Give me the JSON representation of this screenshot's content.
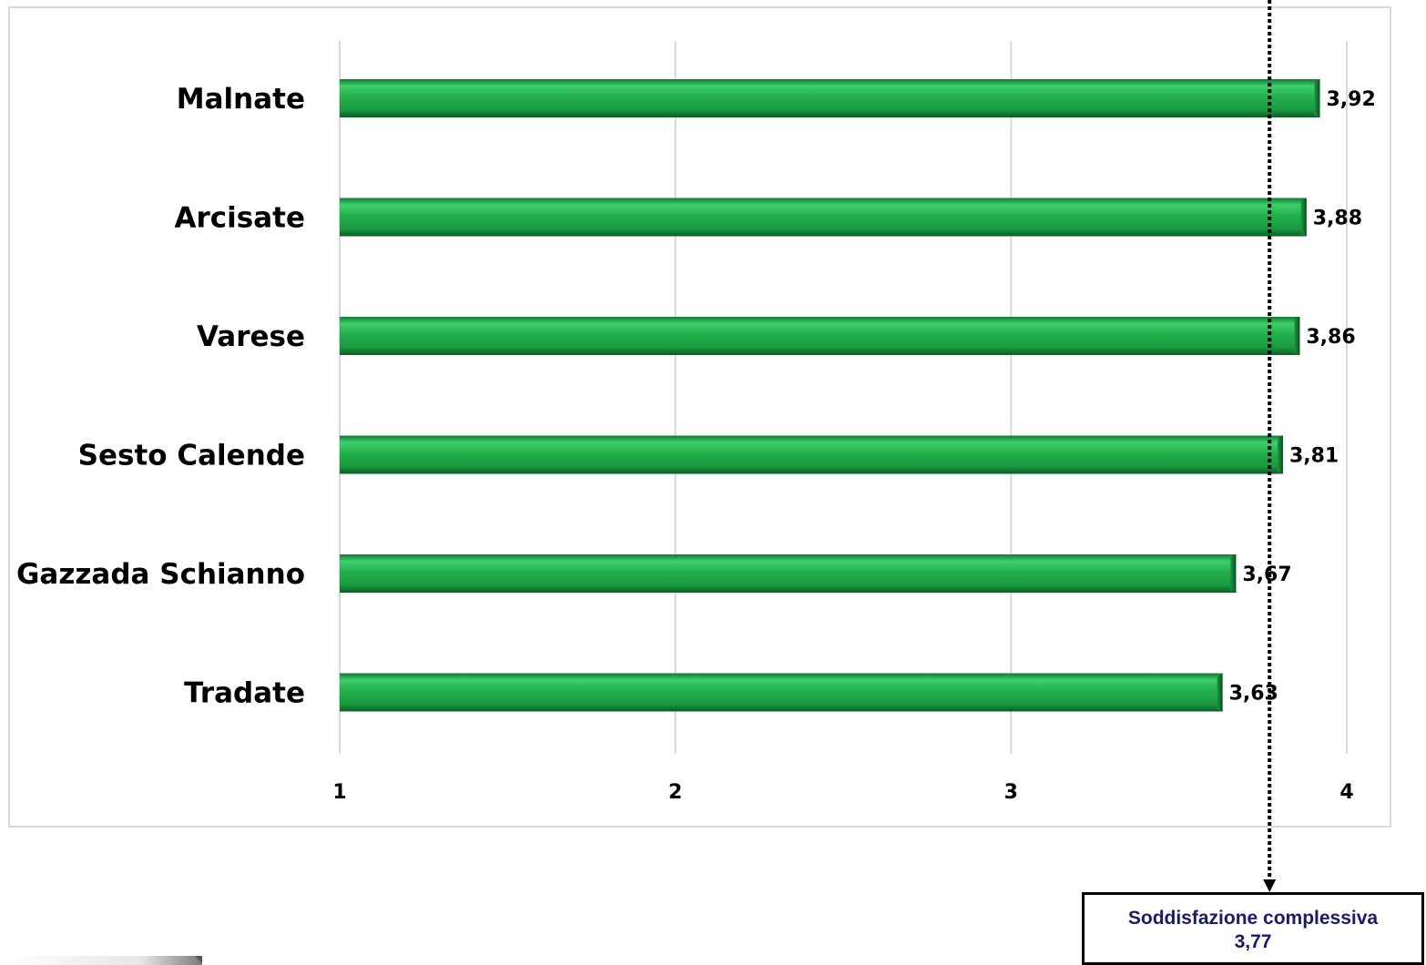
{
  "chart_data": {
    "type": "bar",
    "orientation": "horizontal",
    "categories": [
      "Malnate",
      "Arcisate",
      "Varese",
      "Sesto Calende",
      "Gazzada Schianno",
      "Tradate"
    ],
    "values": [
      3.92,
      3.88,
      3.86,
      3.81,
      3.67,
      3.63
    ],
    "value_labels": [
      "3,92",
      "3,88",
      "3,86",
      "3,81",
      "3,67",
      "3,63"
    ],
    "xlim": [
      1,
      4
    ],
    "ticks": [
      1,
      2,
      3,
      4
    ],
    "tick_labels": [
      "1",
      "2",
      "3",
      "4"
    ],
    "grid": "vertical",
    "bar_color": "#22b04b",
    "reference_line": {
      "value": 3.77,
      "style": "dotted"
    }
  },
  "overall": {
    "label": "Soddisfazione complessiva",
    "value": "3,77"
  }
}
